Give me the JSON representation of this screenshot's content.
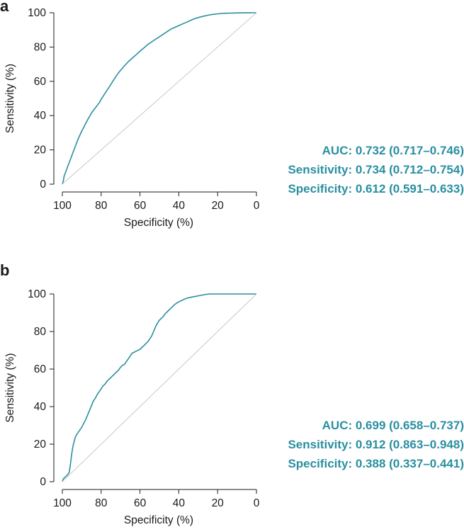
{
  "panels": [
    {
      "letter": "a",
      "stats": {
        "auc": "AUC: 0.732 (0.717–0.746)",
        "sensitivity": "Sensitivity: 0.734 (0.712–0.754)",
        "specificity": "Specificity: 0.612 (0.591–0.633)"
      }
    },
    {
      "letter": "b",
      "stats": {
        "auc": "AUC: 0.699 (0.658–0.737)",
        "sensitivity": "Sensitivity: 0.912 (0.863–0.948)",
        "specificity": "Specificity: 0.388 (0.337–0.441)"
      }
    }
  ],
  "colors": {
    "roc": "#2a8fa0",
    "diagonal": "#c8c8c8",
    "axis": "#1a1a1a",
    "stats": "#2a8fa0"
  },
  "chart_data": [
    {
      "type": "line",
      "xlabel": "Specificity (%)",
      "ylabel": "Sensitivity (%)",
      "xlim": [
        100,
        0
      ],
      "ylim": [
        0,
        100
      ],
      "xticks": [
        100,
        80,
        60,
        40,
        20,
        0
      ],
      "yticks": [
        0,
        20,
        40,
        60,
        80,
        100
      ],
      "grid": false,
      "series": [
        {
          "role": "roc",
          "x": [
            100,
            99.5,
            99,
            98,
            97,
            96,
            95,
            94,
            93,
            92,
            91,
            90,
            89,
            88,
            87,
            86,
            85,
            84,
            83,
            82,
            81,
            80,
            78,
            76,
            74,
            72,
            70,
            68,
            66,
            64,
            62,
            60,
            58,
            56,
            54,
            52,
            50,
            48,
            46,
            44,
            42,
            40,
            38,
            36,
            34,
            32,
            30,
            28,
            26,
            24,
            22,
            20,
            18,
            16,
            14,
            12,
            10,
            8,
            6,
            4,
            2,
            0
          ],
          "y": [
            0,
            2,
            5,
            8,
            11,
            14,
            17,
            20,
            23,
            26,
            28.5,
            31,
            33,
            35.5,
            37.5,
            39.5,
            41.5,
            43,
            44.5,
            46,
            47.5,
            49.5,
            53,
            56.5,
            60,
            63.5,
            66.5,
            69,
            71.5,
            73.5,
            75.5,
            77.5,
            79.5,
            81.5,
            83,
            84.5,
            86,
            87.5,
            89,
            90.5,
            91.5,
            92.5,
            93.5,
            94.5,
            95.5,
            96.5,
            97.2,
            97.8,
            98.3,
            98.8,
            99.1,
            99.4,
            99.6,
            99.7,
            99.8,
            99.85,
            99.9,
            99.93,
            99.95,
            99.97,
            99.99,
            100
          ]
        },
        {
          "role": "chance",
          "x": [
            100,
            0
          ],
          "y": [
            0,
            100
          ]
        }
      ]
    },
    {
      "type": "line",
      "xlabel": "Specificity (%)",
      "ylabel": "Sensitivity (%)",
      "xlim": [
        100,
        0
      ],
      "ylim": [
        0,
        100
      ],
      "xticks": [
        100,
        80,
        60,
        40,
        20,
        0
      ],
      "yticks": [
        0,
        20,
        40,
        60,
        80,
        100
      ],
      "grid": false,
      "series": [
        {
          "role": "roc",
          "x": [
            100,
            99.5,
            99,
            98,
            97,
            96.5,
            96,
            95.5,
            95,
            94.5,
            94,
            93.5,
            93,
            92,
            91,
            90,
            89,
            88,
            87,
            86,
            85,
            84,
            83,
            82,
            81,
            80,
            79,
            78,
            77,
            76,
            75,
            74,
            73,
            72,
            71,
            70,
            69,
            68,
            67,
            66,
            65,
            64,
            63,
            62,
            61,
            60,
            59,
            58,
            57,
            56,
            55,
            54,
            53,
            52,
            51,
            50,
            49,
            48,
            47,
            46,
            45,
            44,
            43,
            42,
            41,
            40,
            39,
            38,
            37,
            36,
            35,
            34,
            33,
            32,
            31,
            30,
            29,
            28,
            27,
            26,
            25,
            24,
            23,
            22,
            20,
            15,
            10,
            5,
            0
          ],
          "y": [
            0,
            1.5,
            2,
            3,
            4,
            5,
            8,
            12,
            16,
            19,
            21,
            23,
            24.5,
            26,
            27.5,
            29,
            31,
            33,
            35.5,
            38,
            40.5,
            43,
            44.5,
            46.5,
            48,
            49.5,
            51,
            52,
            53.5,
            54.5,
            55.5,
            56.5,
            57.5,
            58.5,
            59.5,
            61,
            62,
            62.5,
            64,
            65.5,
            67,
            68.5,
            69,
            69.5,
            70,
            70.5,
            71.5,
            72.5,
            73.5,
            74.5,
            76,
            77.5,
            80,
            82.5,
            84.5,
            86,
            87,
            88,
            89.5,
            90.5,
            91.5,
            92.5,
            93.5,
            94.5,
            95.2,
            95.8,
            96.3,
            96.8,
            97.3,
            97.7,
            98,
            98.2,
            98.4,
            98.6,
            98.8,
            99,
            99.2,
            99.4,
            99.6,
            99.8,
            99.9,
            100,
            100,
            100,
            100,
            100,
            100,
            100,
            100
          ]
        },
        {
          "role": "chance",
          "x": [
            100,
            0
          ],
          "y": [
            0,
            100
          ]
        }
      ]
    }
  ]
}
